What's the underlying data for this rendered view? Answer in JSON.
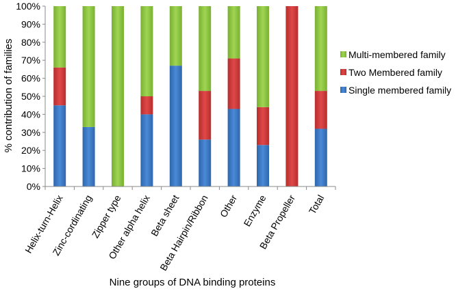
{
  "chart_data": {
    "type": "bar",
    "stacked": true,
    "normalized": true,
    "title": "",
    "xlabel": "Nine groups of DNA binding proteins",
    "ylabel": "% contribution of families",
    "ylim": [
      0,
      100
    ],
    "yticks": [
      "0%",
      "10%",
      "20%",
      "30%",
      "40%",
      "50%",
      "60%",
      "70%",
      "80%",
      "90%",
      "100%"
    ],
    "grid": false,
    "legend_position": "right",
    "categories": [
      "Helix-turn-Helix",
      "Zinc-cordinating",
      "Zipper type",
      "Other alpha helix",
      "Beta sheet",
      "Beta Hairpin/Ribbon",
      "Other",
      "Enzyme",
      "Beta Propeller",
      "Total"
    ],
    "series": [
      {
        "name": "Single membered family",
        "color": "#3A78C4",
        "values": [
          45,
          33,
          0,
          40,
          67,
          26,
          43,
          23,
          0,
          32
        ]
      },
      {
        "name": "Two Membered family",
        "color": "#D03A3A",
        "values": [
          21,
          0,
          0,
          10,
          0,
          27,
          28,
          21,
          100,
          21
        ]
      },
      {
        "name": "Multi-membered family",
        "color": "#8DC63F",
        "values": [
          34,
          67,
          100,
          50,
          33,
          47,
          29,
          56,
          0,
          47
        ]
      }
    ],
    "legend_order": [
      "Multi-membered family",
      "Two Membered family",
      "Single membered family"
    ]
  }
}
